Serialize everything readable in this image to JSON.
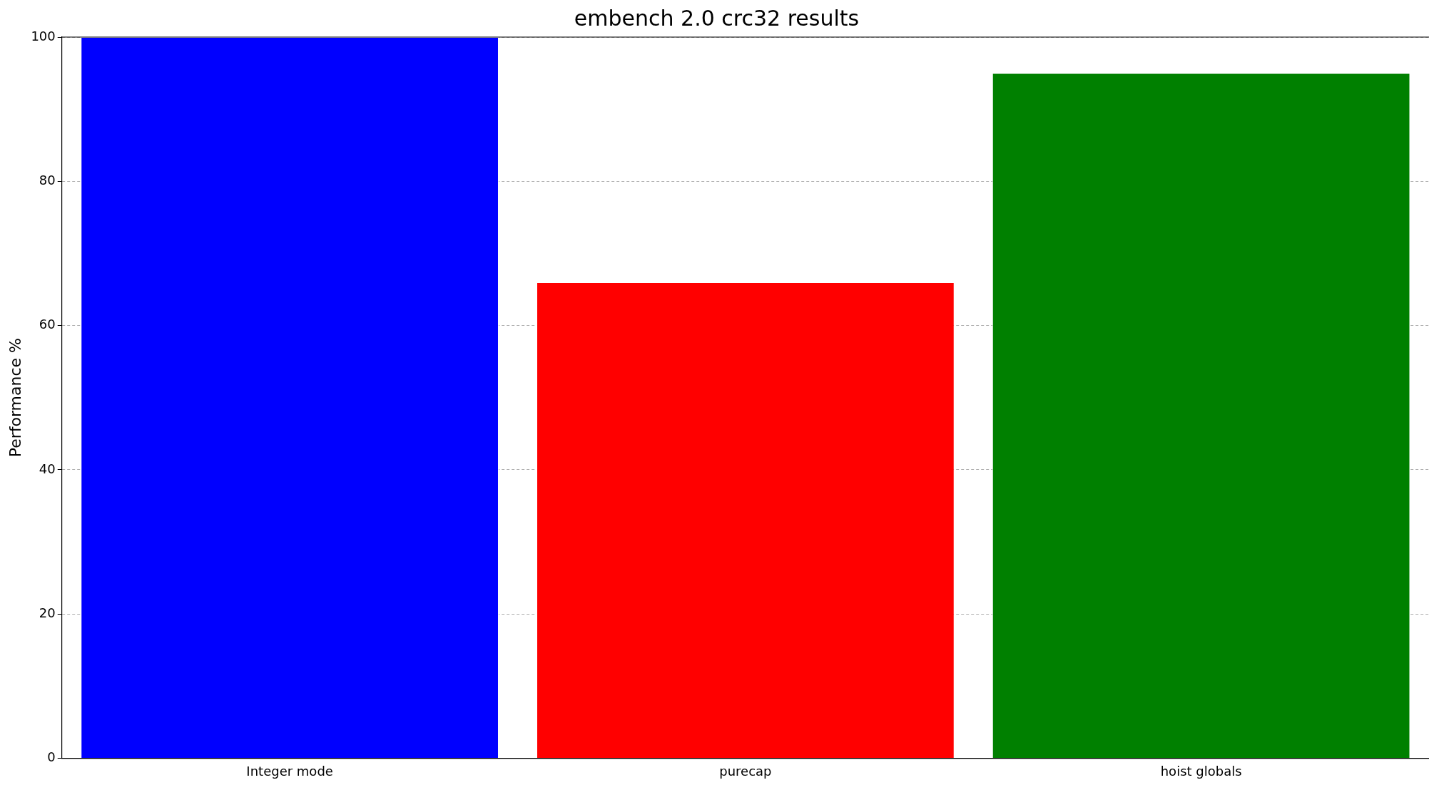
{
  "chart_data": {
    "type": "bar",
    "title": "embench 2.0 crc32 results",
    "ylabel": "Performance %",
    "categories": [
      "Integer mode",
      "purecap",
      "hoist globals"
    ],
    "values": [
      100,
      66,
      95
    ],
    "colors": [
      "#0000ff",
      "#ff0000",
      "#008000"
    ],
    "ylim": [
      0,
      100
    ],
    "yticks": [
      0,
      20,
      40,
      60,
      80,
      100
    ],
    "grid": "y",
    "legend": false
  }
}
